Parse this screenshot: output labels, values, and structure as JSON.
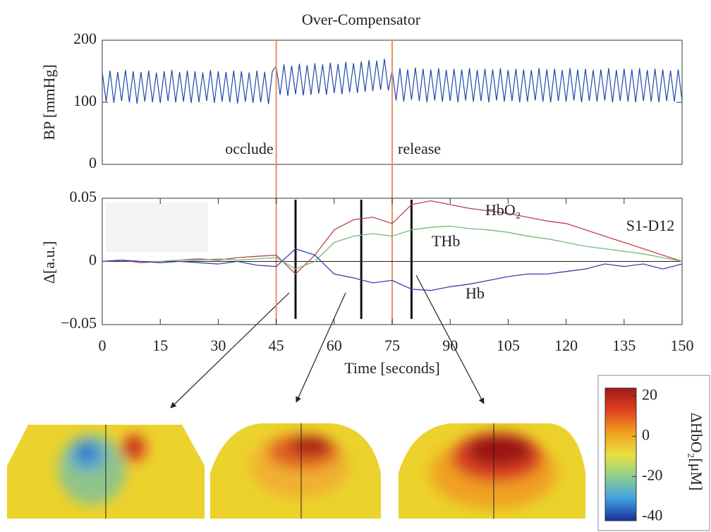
{
  "chart_data": [
    {
      "type": "line",
      "title": "Over-Compensator",
      "ylabel": "BP [mmHg]",
      "xlim": [
        0,
        150
      ],
      "ylim": [
        0,
        200
      ],
      "yticks": [
        0,
        100,
        200
      ],
      "events": [
        {
          "x": 45,
          "label": "occlude"
        },
        {
          "x": 75,
          "label": "release"
        }
      ],
      "event_color": "#e8906a",
      "x": [
        0,
        1,
        2,
        3,
        4,
        5,
        6,
        7,
        8,
        9,
        10,
        11,
        12,
        13,
        14,
        15,
        16,
        17,
        18,
        19,
        20,
        21,
        22,
        23,
        24,
        25,
        26,
        27,
        28,
        29,
        30,
        31,
        32,
        33,
        34,
        35,
        36,
        37,
        38,
        39,
        40,
        41,
        42,
        43,
        44,
        45,
        46,
        47,
        48,
        49,
        50,
        51,
        52,
        53,
        54,
        55,
        56,
        57,
        58,
        59,
        60,
        61,
        62,
        63,
        64,
        65,
        66,
        67,
        68,
        69,
        70,
        71,
        72,
        73,
        74,
        75,
        76,
        77,
        78,
        79,
        80,
        81,
        82,
        83,
        84,
        85,
        86,
        87,
        88,
        89,
        90,
        91,
        92,
        93,
        94,
        95,
        96,
        97,
        98,
        99,
        100,
        101,
        102,
        103,
        104,
        105,
        106,
        107,
        108,
        109,
        110,
        111,
        112,
        113,
        114,
        115,
        116,
        117,
        118,
        119,
        120,
        121,
        122,
        123,
        124,
        125,
        126,
        127,
        128,
        129,
        130,
        131,
        132,
        133,
        134,
        135,
        136,
        137,
        138,
        139,
        140,
        141,
        142,
        143,
        144,
        145,
        146,
        147,
        148,
        149,
        150
      ],
      "series": [
        {
          "color": "#1f4aa8",
          "values": [
            148,
            101,
            151,
            99,
            149,
            102,
            152,
            100,
            150,
            98,
            149,
            101,
            151,
            100,
            148,
            99,
            150,
            102,
            152,
            100,
            149,
            101,
            151,
            99,
            150,
            100,
            148,
            102,
            152,
            99,
            150,
            101,
            149,
            100,
            151,
            98,
            150,
            101,
            148,
            99,
            151,
            100,
            149,
            97,
            150,
            158,
            112,
            161,
            110,
            159,
            113,
            162,
            111,
            160,
            112,
            163,
            114,
            161,
            112,
            164,
            115,
            162,
            113,
            165,
            116,
            163,
            115,
            166,
            117,
            168,
            118,
            167,
            120,
            170,
            119,
            152,
            103,
            155,
            101,
            153,
            104,
            156,
            102,
            154,
            100,
            153,
            103,
            155,
            101,
            152,
            102,
            154,
            100,
            153,
            103,
            155,
            101,
            152,
            102,
            154,
            100,
            153,
            103,
            155,
            101,
            152,
            102,
            154,
            100,
            153,
            101,
            152,
            103,
            155,
            101,
            153,
            100,
            154,
            102,
            152,
            101,
            155,
            103,
            153,
            100,
            154,
            102,
            152,
            101,
            153,
            103,
            155,
            100,
            152,
            102,
            154,
            101,
            153,
            100,
            155,
            102,
            152,
            101,
            154,
            100,
            153,
            102,
            151,
            101,
            153,
            102
          ]
        }
      ]
    },
    {
      "type": "line",
      "ylabel": "Δ[a.u.]",
      "xlabel": "Time [seconds]",
      "annotation": "S1-D12",
      "xlim": [
        0,
        150
      ],
      "xticks": [
        0,
        15,
        30,
        45,
        60,
        75,
        90,
        105,
        120,
        135,
        150
      ],
      "ylim": [
        -0.05,
        0.05
      ],
      "yticks": [
        {
          "value": -0.05,
          "label": "−0.05"
        },
        0,
        0.05
      ],
      "markers": [
        50,
        67,
        80
      ],
      "x": [
        0,
        5,
        10,
        15,
        20,
        25,
        30,
        35,
        40,
        45,
        50,
        55,
        60,
        65,
        70,
        75,
        80,
        85,
        90,
        95,
        100,
        105,
        110,
        115,
        120,
        125,
        130,
        135,
        140,
        145,
        150
      ],
      "series": [
        {
          "name": "HbO₂",
          "color": "#b5474f",
          "values": [
            0,
            0.001,
            -0.001,
            0,
            0.001,
            0.002,
            0.001,
            0.003,
            0.004,
            0.005,
            -0.01,
            0.005,
            0.025,
            0.033,
            0.035,
            0.03,
            0.045,
            0.048,
            0.045,
            0.042,
            0.04,
            0.038,
            0.035,
            0.032,
            0.03,
            0.025,
            0.02,
            0.015,
            0.01,
            0.005,
            0
          ]
        },
        {
          "name": "THb",
          "color": "#78b878",
          "values": [
            0,
            0.001,
            0,
            0,
            0.001,
            0.001,
            0.002,
            0.001,
            0.002,
            0.003,
            -0.006,
            0,
            0.015,
            0.02,
            0.022,
            0.02,
            0.025,
            0.027,
            0.028,
            0.026,
            0.025,
            0.023,
            0.02,
            0.018,
            0.015,
            0.012,
            0.01,
            0.008,
            0.006,
            0.003,
            0
          ]
        },
        {
          "name": "Hb",
          "color": "#3c3fb0",
          "values": [
            0,
            0.001,
            0,
            -0.001,
            0,
            -0.001,
            -0.002,
            0,
            -0.003,
            -0.004,
            0.01,
            0.005,
            -0.01,
            -0.013,
            -0.017,
            -0.015,
            -0.022,
            -0.023,
            -0.02,
            -0.018,
            -0.015,
            -0.012,
            -0.01,
            -0.01,
            -0.008,
            -0.006,
            -0.002,
            -0.004,
            -0.002,
            -0.006,
            -0.002
          ]
        }
      ]
    },
    {
      "type": "colorbar",
      "label": "ΔHbO₂[μM]",
      "ylim": [
        -42,
        24
      ],
      "yticks": [
        20,
        0,
        -20,
        -40
      ],
      "colors": [
        "#1a2f9a",
        "#3fa0e0",
        "#8fcf8f",
        "#e8e040",
        "#f0a020",
        "#e04020",
        "#a01818"
      ]
    }
  ]
}
